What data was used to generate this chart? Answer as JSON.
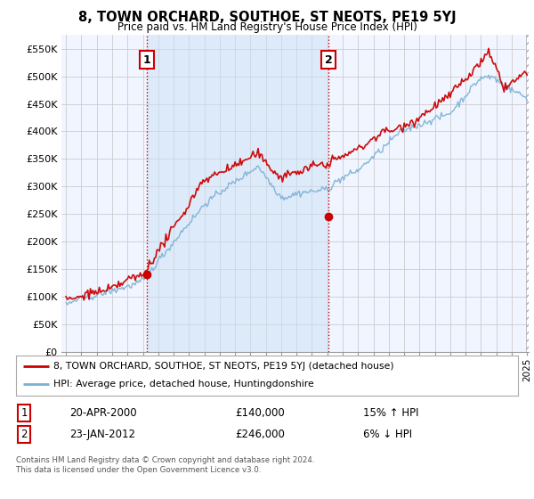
{
  "title": "8, TOWN ORCHARD, SOUTHOE, ST NEOTS, PE19 5YJ",
  "subtitle": "Price paid vs. HM Land Registry's House Price Index (HPI)",
  "ylim": [
    0,
    575000
  ],
  "yticks": [
    0,
    50000,
    100000,
    150000,
    200000,
    250000,
    300000,
    350000,
    400000,
    450000,
    500000,
    550000
  ],
  "ytick_labels": [
    "£0",
    "£50K",
    "£100K",
    "£150K",
    "£200K",
    "£250K",
    "£300K",
    "£350K",
    "£400K",
    "£450K",
    "£500K",
    "£550K"
  ],
  "sale1_date": 2000.25,
  "sale1_price": 140000,
  "sale1_label": "1",
  "sale2_date": 2012.07,
  "sale2_price": 246000,
  "sale2_label": "2",
  "sale1_info": "20-APR-2000",
  "sale1_amount": "£140,000",
  "sale1_hpi": "15% ↑ HPI",
  "sale2_info": "23-JAN-2012",
  "sale2_amount": "£246,000",
  "sale2_hpi": "6% ↓ HPI",
  "legend_red": "8, TOWN ORCHARD, SOUTHOE, ST NEOTS, PE19 5YJ (detached house)",
  "legend_blue": "HPI: Average price, detached house, Huntingdonshire",
  "footer": "Contains HM Land Registry data © Crown copyright and database right 2024.\nThis data is licensed under the Open Government Licence v3.0.",
  "hpi_color": "#7bafd4",
  "price_color": "#cc0000",
  "vline_color": "#cc0000",
  "shade_color": "#ddeeff",
  "background_color": "#ffffff",
  "grid_color": "#cccccc",
  "xmin": 1995.0,
  "xmax": 2025.0
}
